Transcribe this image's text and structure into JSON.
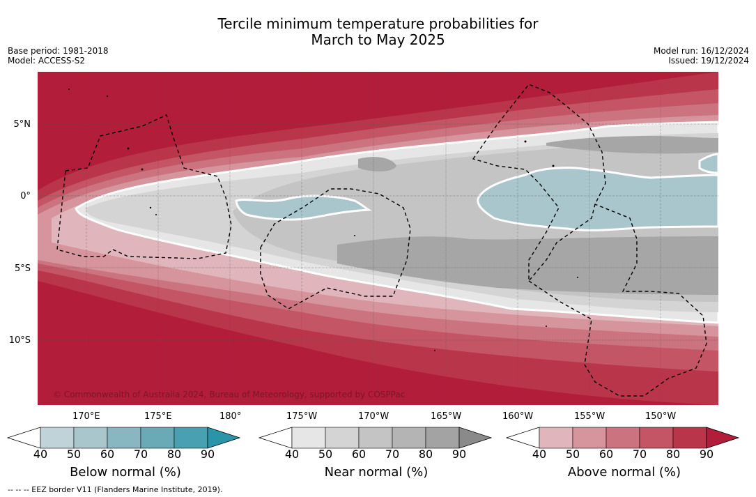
{
  "title": {
    "line1": "Tercile minimum temperature probabilities for",
    "line2": "March to May 2025"
  },
  "meta": {
    "base_period": "Base period: 1981-2018",
    "model": "Model: ACCESS-S2",
    "model_run": "Model run: 16/12/2024",
    "issued": "Issued: 19/12/2024"
  },
  "map": {
    "lat_labels": [
      "5°N",
      "0°",
      "5°S",
      "10°S"
    ],
    "lon_labels": [
      "170°E",
      "175°E",
      "180°",
      "175°W",
      "170°W",
      "165°W",
      "160°W",
      "155°W",
      "150°W"
    ],
    "copyright": "© Commonwealth of Australia 2024, Bureau of Meteorology, supported by COSPPac",
    "colors": {
      "above_max": "#b21d39",
      "near_normal_light": "#e6e6e6",
      "near_normal_mid": "#d4d4d4",
      "near_normal_dark": "#a6a6a6",
      "below_normal": "#a8c6cc"
    }
  },
  "colorbars": [
    {
      "title": "Below normal (%)",
      "ticks": [
        "40",
        "50",
        "60",
        "70",
        "80",
        "90"
      ],
      "colors": [
        "#bfd3d8",
        "#a8c6cc",
        "#8ab6c2",
        "#6aaab7",
        "#48a0b1",
        "#2a95a8"
      ]
    },
    {
      "title": "Near normal (%)",
      "ticks": [
        "40",
        "50",
        "60",
        "70",
        "80",
        "90"
      ],
      "colors": [
        "#e6e6e6",
        "#d4d4d4",
        "#c4c4c4",
        "#b4b4b4",
        "#a3a3a3",
        "#8a8a8a"
      ]
    },
    {
      "title": "Above normal (%)",
      "ticks": [
        "40",
        "50",
        "60",
        "70",
        "80",
        "90"
      ],
      "colors": [
        "#e0b6bc",
        "#d6959d",
        "#cb737e",
        "#c35565",
        "#b9364a",
        "#b21d39"
      ]
    }
  ],
  "footnote": "--  --  -- EEZ border V11 (Flanders Marine Institute, 2019)."
}
